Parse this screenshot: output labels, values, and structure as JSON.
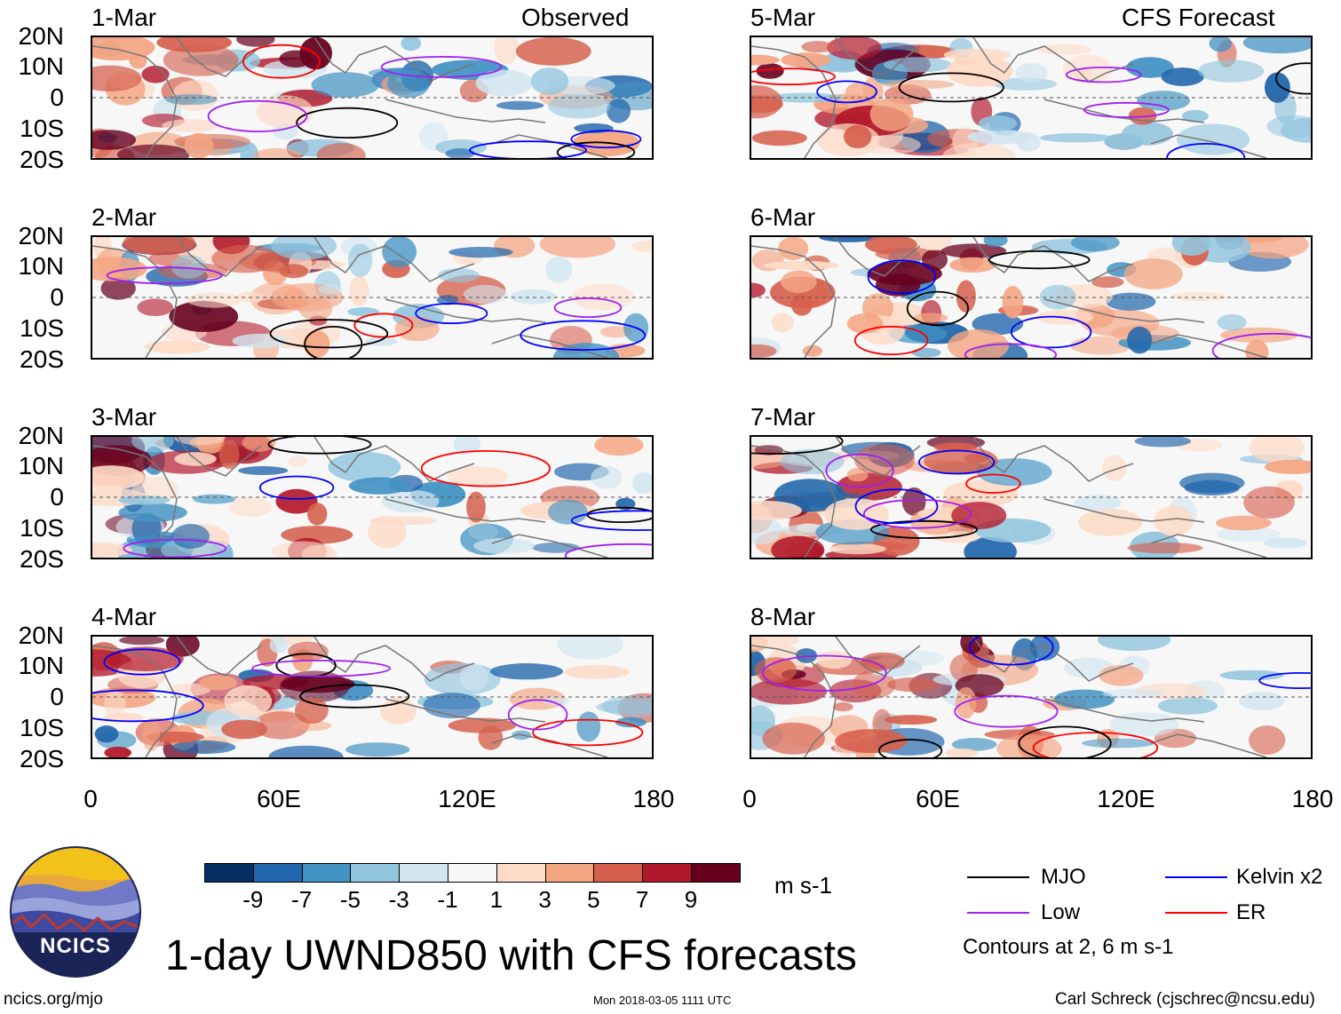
{
  "headers": {
    "left": "Observed",
    "right": "CFS Forecast"
  },
  "observed_dates": [
    "1-Mar",
    "2-Mar",
    "3-Mar",
    "4-Mar"
  ],
  "forecast_dates": [
    "5-Mar",
    "6-Mar",
    "7-Mar",
    "8-Mar"
  ],
  "lat_labels": [
    "20N",
    "10N",
    "0",
    "10S",
    "20S"
  ],
  "lon_labels": [
    "0",
    "60E",
    "120E",
    "180"
  ],
  "colorbar": {
    "colors": [
      "#053061",
      "#2166ac",
      "#4393c3",
      "#92c5de",
      "#d1e5f0",
      "#f7f7f7",
      "#fddbc7",
      "#f4a582",
      "#d6604d",
      "#b2182b",
      "#67001f"
    ],
    "labels": [
      "-9",
      "-7",
      "-5",
      "-3",
      "-1",
      "1",
      "3",
      "5",
      "7",
      "9"
    ],
    "units": "m s-1"
  },
  "legend": {
    "items": [
      {
        "label": "MJO",
        "color": "#000000"
      },
      {
        "label": "Kelvin x2",
        "color": "#0000ff"
      },
      {
        "label": "Low",
        "color": "#a020f0"
      },
      {
        "label": "ER",
        "color": "#ff0000"
      }
    ],
    "note": "Contours at 2, 6 m s-1"
  },
  "title": "1-day UWND850 with CFS forecasts",
  "logo_text": "NCICS",
  "footer": {
    "url": "ncics.org/mjo",
    "timestamp": "Mon 2018-03-05 1111 UTC",
    "credit": "Carl Schreck (cjschrec@ncsu.edu)"
  }
}
